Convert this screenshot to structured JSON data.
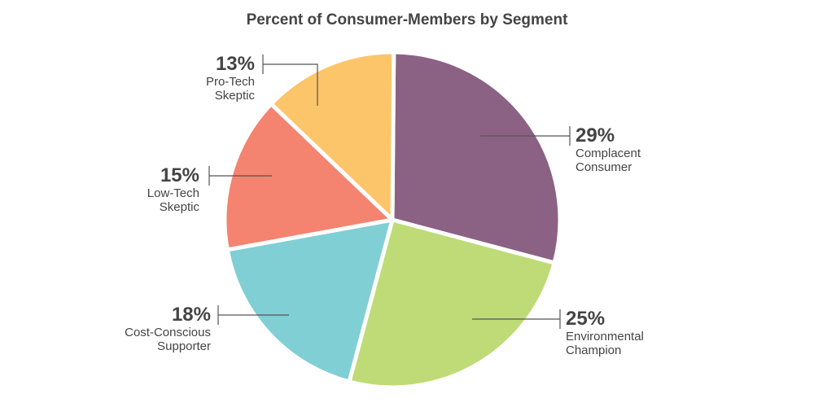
{
  "chart_data": {
    "type": "pie",
    "title": "Percent of Consumer-Members by Segment",
    "slices": [
      {
        "label_line1": "Complacent",
        "label_line2": "Consumer",
        "value": 29,
        "pct": "29%",
        "color": "#8b6283"
      },
      {
        "label_line1": "Environmental",
        "label_line2": "Champion",
        "value": 25,
        "pct": "25%",
        "color": "#bedb77"
      },
      {
        "label_line1": "Cost-Conscious",
        "label_line2": "Supporter",
        "value": 18,
        "pct": "18%",
        "color": "#80cfd5"
      },
      {
        "label_line1": "Low-Tech",
        "label_line2": "Skeptic",
        "value": 15,
        "pct": "15%",
        "color": "#f4836f"
      },
      {
        "label_line1": "Pro-Tech",
        "label_line2": "Skeptic",
        "value": 13,
        "pct": "13%",
        "color": "#fdc569"
      }
    ]
  }
}
